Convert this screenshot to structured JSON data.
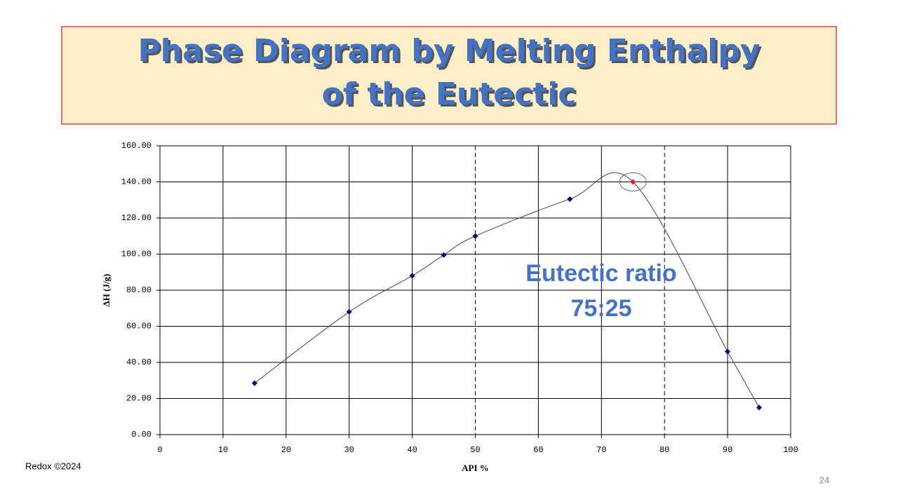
{
  "title": [
    "Phase Diagram by Melting Enthalpy",
    "of the Eutectic"
  ],
  "footer": "Redox ©2024",
  "page_number": "24",
  "chart_data": {
    "type": "scatter",
    "x": [
      15,
      30,
      40,
      45,
      50,
      65,
      75,
      90,
      95
    ],
    "values": [
      28.5,
      68,
      88,
      99.5,
      110,
      130.5,
      140,
      46,
      15
    ],
    "point_colors": [
      "#000080",
      "#000080",
      "#000080",
      "#000080",
      "#000080",
      "#000080",
      "#e02020",
      "#000080",
      "#000080"
    ],
    "xlabel": "API %",
    "ylabel": "ΔH (J/g)",
    "annotation": [
      "Eutectic ratio",
      "75:25"
    ],
    "xlim": [
      0,
      100
    ],
    "ylim": [
      0,
      160
    ],
    "xticks": [
      0,
      10,
      20,
      30,
      40,
      50,
      60,
      70,
      80,
      90,
      100
    ],
    "yticks": [
      {
        "value": 0,
        "label": "0.00"
      },
      {
        "value": 20,
        "label": "20.00"
      },
      {
        "value": 40,
        "label": "40.00"
      },
      {
        "value": 60,
        "label": "60.00"
      },
      {
        "value": 80,
        "label": "80.00"
      },
      {
        "value": 100,
        "label": "100.00"
      },
      {
        "value": 120,
        "label": "120.00"
      },
      {
        "value": 140,
        "label": "140.00"
      },
      {
        "value": 160,
        "label": "160.00"
      }
    ],
    "xgrid_dashed": [
      50,
      80
    ],
    "grid": true,
    "trend_line": true
  }
}
